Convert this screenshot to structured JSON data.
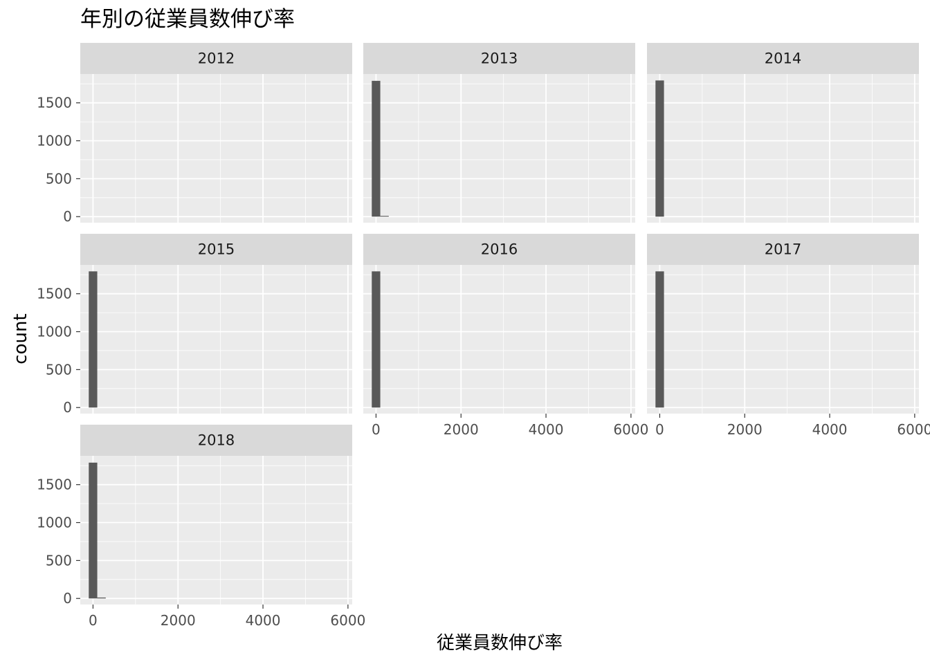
{
  "chart_data": {
    "type": "bar",
    "title": "年別の従業員数伸び率",
    "xlabel": "従業員数伸び率",
    "ylabel": "count",
    "xlim": [
      -300,
      6100
    ],
    "ylim": [
      -80,
      1880
    ],
    "x_ticks": [
      0,
      2000,
      4000,
      6000
    ],
    "x_tick_labels": [
      "0",
      "2000",
      "4000",
      "6000"
    ],
    "y_ticks": [
      0,
      500,
      1000,
      1500
    ],
    "y_tick_labels": [
      "0",
      "500",
      "1000",
      "1500"
    ],
    "bin_width": 200,
    "grid": true,
    "colors": {
      "bar": "#595959",
      "panel_bg": "#ebebeb",
      "strip_bg": "#d9d9d9",
      "grid": "#ffffff"
    },
    "panels": [
      {
        "label": "2012",
        "bins": []
      },
      {
        "label": "2013",
        "bins": [
          {
            "x0": -100,
            "x1": 100,
            "count": 1790
          },
          {
            "x0": 100,
            "x1": 300,
            "count": 10
          }
        ]
      },
      {
        "label": "2014",
        "bins": [
          {
            "x0": -100,
            "x1": 100,
            "count": 1795
          }
        ]
      },
      {
        "label": "2015",
        "bins": [
          {
            "x0": -100,
            "x1": 100,
            "count": 1795
          }
        ]
      },
      {
        "label": "2016",
        "bins": [
          {
            "x0": -100,
            "x1": 100,
            "count": 1795
          }
        ]
      },
      {
        "label": "2017",
        "bins": [
          {
            "x0": -100,
            "x1": 100,
            "count": 1795
          }
        ]
      },
      {
        "label": "2018",
        "bins": [
          {
            "x0": -100,
            "x1": 100,
            "count": 1790
          },
          {
            "x0": 100,
            "x1": 300,
            "count": 12
          }
        ]
      }
    ]
  }
}
